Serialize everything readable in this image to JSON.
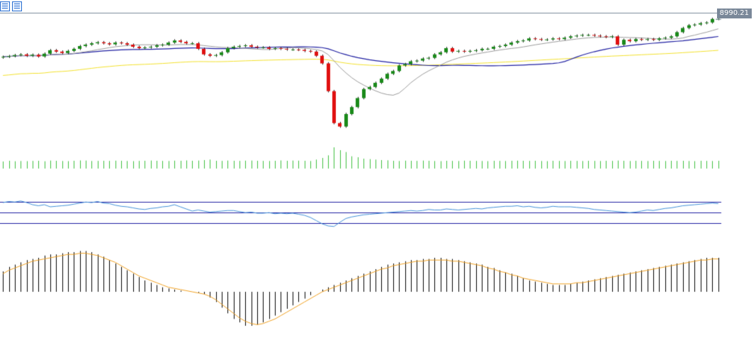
{
  "toolbar": {
    "buttons": [
      {
        "name": "chart-list-icon"
      },
      {
        "name": "chart-compare-icon"
      }
    ]
  },
  "current_price_label": "8990.21",
  "colors": {
    "up": "#1a8a1a",
    "down": "#e01010",
    "ma_short": "#9a9a9a",
    "ma_mid": "#1d1da0",
    "ma_long": "#f2e02a",
    "volume": "#3cbf3c",
    "rsi_line": "#3f8fd8",
    "rsi_bands": "#1d1da0",
    "price_line": "#7a8899",
    "macd_hist": "#000000",
    "macd_signal": "#f0a020"
  },
  "chart_data": {
    "type": "candlestick",
    "price_axis": {
      "min": 7120,
      "max": 9080
    },
    "current_price": 8990.21,
    "close": [
      8445,
      8455,
      8470,
      8480,
      8460,
      8475,
      8450,
      8490,
      8540,
      8520,
      8500,
      8530,
      8560,
      8600,
      8620,
      8640,
      8655,
      8640,
      8625,
      8650,
      8640,
      8620,
      8590,
      8570,
      8580,
      8590,
      8610,
      8620,
      8650,
      8680,
      8660,
      8640,
      8640,
      8560,
      8480,
      8460,
      8470,
      8510,
      8570,
      8590,
      8600,
      8610,
      8590,
      8580,
      8580,
      8560,
      8570,
      8560,
      8550,
      8550,
      8545,
      8530,
      8520,
      8460,
      8350,
      7950,
      7490,
      7440,
      7620,
      7720,
      7850,
      7980,
      8010,
      8070,
      8130,
      8200,
      8240,
      8320,
      8340,
      8380,
      8390,
      8420,
      8430,
      8480,
      8510,
      8570,
      8520,
      8530,
      8520,
      8530,
      8540,
      8560,
      8560,
      8590,
      8600,
      8620,
      8650,
      8670,
      8680,
      8710,
      8700,
      8690,
      8695,
      8710,
      8700,
      8720,
      8740,
      8750,
      8760,
      8760,
      8750,
      8740,
      8730,
      8740,
      8620,
      8690,
      8670,
      8700,
      8690,
      8700,
      8690,
      8710,
      8720,
      8740,
      8800,
      8860,
      8900,
      8910,
      8930,
      8940,
      8990,
      8990
    ],
    "volume": [
      300,
      330,
      310,
      320,
      315,
      325,
      330,
      310,
      340,
      330,
      320,
      315,
      330,
      345,
      340,
      320,
      325,
      330,
      325,
      335,
      330,
      320,
      315,
      325,
      330,
      340,
      330,
      325,
      320,
      335,
      330,
      345,
      330,
      340,
      360,
      380,
      330,
      325,
      340,
      330,
      325,
      335,
      340,
      330,
      325,
      320,
      330,
      345,
      330,
      340,
      335,
      330,
      320,
      380,
      450,
      560,
      900,
      780,
      700,
      520,
      480,
      420,
      400,
      380,
      360,
      350,
      330,
      320,
      335,
      330,
      325,
      340,
      330,
      320,
      315,
      330,
      325,
      320,
      335,
      330,
      325,
      320,
      315,
      330,
      325,
      320,
      330,
      335,
      330,
      325,
      330,
      320,
      315,
      330,
      325,
      320,
      330,
      325,
      320,
      330,
      325,
      320,
      330,
      325,
      340,
      330,
      320,
      330,
      325,
      320,
      330,
      325,
      320,
      330,
      325,
      330,
      320,
      315,
      330,
      325,
      320,
      330
    ],
    "rsi": {
      "bands": [
        70,
        50,
        30
      ],
      "values": [
        68,
        70,
        69,
        71,
        68,
        64,
        62,
        64,
        60,
        61,
        62,
        63,
        65,
        67,
        69,
        68,
        70,
        67,
        66,
        63,
        61,
        60,
        58,
        56,
        55,
        57,
        58,
        60,
        61,
        64,
        60,
        56,
        52,
        54,
        52,
        50,
        51,
        52,
        53,
        53,
        51,
        49,
        50,
        48,
        48,
        49,
        47,
        48,
        47,
        48,
        46,
        44,
        40,
        34,
        28,
        24,
        23,
        31,
        38,
        41,
        43,
        45,
        46,
        47,
        48,
        49,
        50,
        51,
        52,
        53,
        52,
        53,
        55,
        54,
        54,
        56,
        55,
        54,
        55,
        56,
        57,
        56,
        58,
        59,
        60,
        61,
        61,
        62,
        60,
        61,
        59,
        58,
        59,
        61,
        60,
        60,
        60,
        59,
        58,
        57,
        55,
        54,
        53,
        52,
        51,
        50,
        49,
        50,
        52,
        54,
        53,
        55,
        57,
        58,
        60,
        62,
        63,
        64,
        65,
        66,
        67,
        66
      ]
    },
    "macd": {
      "hist": [
        18,
        22,
        24,
        26,
        28,
        29,
        30,
        32,
        33,
        33,
        34,
        35,
        35,
        36,
        36,
        35,
        33,
        31,
        28,
        25,
        22,
        19,
        16,
        13,
        10,
        8,
        6,
        4,
        3,
        2,
        1,
        0,
        0,
        -1,
        -2,
        -5,
        -9,
        -14,
        -19,
        -24,
        -27,
        -30,
        -30,
        -29,
        -27,
        -24,
        -21,
        -18,
        -15,
        -12,
        -9,
        -6,
        -3,
        0,
        2,
        4,
        6,
        8,
        10,
        12,
        14,
        16,
        18,
        20,
        22,
        24,
        25,
        26,
        27,
        28,
        28,
        29,
        29,
        30,
        30,
        29,
        29,
        28,
        27,
        26,
        25,
        24,
        22,
        21,
        19,
        17,
        16,
        14,
        12,
        10,
        9,
        8,
        7,
        6,
        6,
        6,
        7,
        8,
        9,
        10,
        11,
        12,
        13,
        14,
        15,
        16,
        17,
        18,
        19,
        20,
        21,
        22,
        23,
        24,
        25,
        26,
        27,
        28,
        29,
        30,
        30,
        30
      ],
      "signal": [
        16,
        19,
        21,
        23,
        25,
        27,
        28,
        29,
        30,
        31,
        32,
        33,
        33,
        34,
        34,
        33,
        32,
        30,
        28,
        26,
        23,
        20,
        17,
        14,
        12,
        10,
        8,
        6,
        4,
        3,
        2,
        1,
        0,
        -1,
        -2,
        -4,
        -7,
        -11,
        -15,
        -19,
        -23,
        -26,
        -28,
        -29,
        -28,
        -26,
        -24,
        -21,
        -18,
        -15,
        -12,
        -9,
        -6,
        -3,
        0,
        2,
        4,
        6,
        8,
        10,
        12,
        14,
        16,
        18,
        20,
        21,
        23,
        24,
        25,
        26,
        27,
        27,
        28,
        28,
        28,
        28,
        27,
        27,
        26,
        25,
        24,
        23,
        21,
        20,
        18,
        17,
        15,
        14,
        12,
        11,
        10,
        9,
        8,
        7,
        7,
        7,
        7,
        8,
        8,
        9,
        10,
        11,
        12,
        13,
        14,
        15,
        16,
        17,
        18,
        19,
        20,
        21,
        22,
        23,
        24,
        25,
        26,
        27,
        28,
        28,
        29,
        29
      ]
    }
  }
}
